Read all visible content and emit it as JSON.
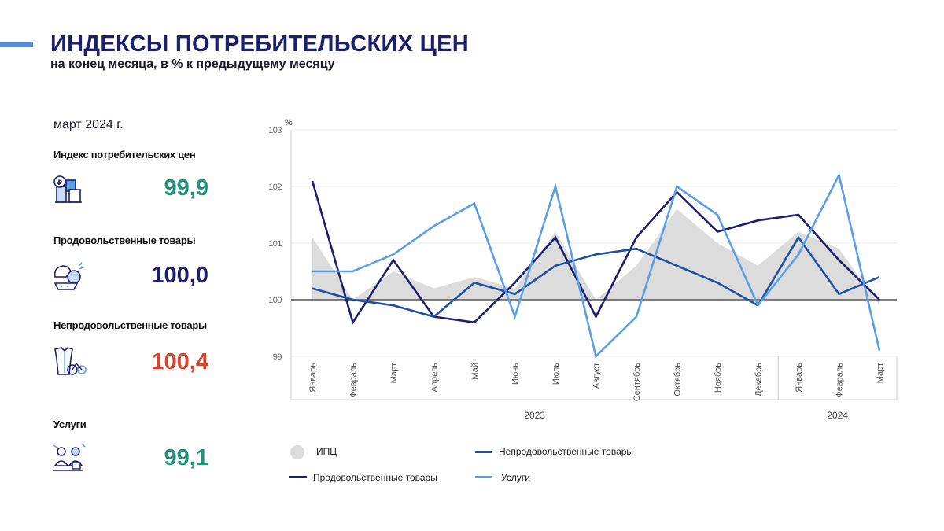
{
  "header": {
    "title": "ИНДЕКСЫ ПОТРЕБИТЕЛЬСКИХ ЦЕН",
    "subtitle": "на конец месяца, в % к предыдущему месяцу"
  },
  "period": "март 2024 г.",
  "metrics": [
    {
      "label": "Индекс потребительских цен",
      "value": "99,9",
      "color": "#22937a",
      "icon": "cpi-basket-icon"
    },
    {
      "label": "Продовольственные товары",
      "value": "100,0",
      "color": "#1c1e6e",
      "icon": "food-icon"
    },
    {
      "label": "Непродовольственные товары",
      "value": "100,4",
      "color": "#d9452b",
      "icon": "clothes-bicycle-icon"
    },
    {
      "label": "Услуги",
      "value": "99,1",
      "color": "#22937a",
      "icon": "services-icon"
    }
  ],
  "chart_data": {
    "type": "line",
    "ylabel": "%",
    "ylim": [
      99,
      103
    ],
    "yticks": [
      "99",
      "100",
      "101",
      "102",
      "103"
    ],
    "categories": [
      "Январь",
      "Февраль",
      "Март",
      "Апрель",
      "Май",
      "Июнь",
      "Июль",
      "Август",
      "Сентябрь",
      "Октябрь",
      "Ноябрь",
      "Декабрь",
      "Январь",
      "Февраль",
      "Март"
    ],
    "year_groups": [
      {
        "label": "2023",
        "start": 0,
        "end": 11
      },
      {
        "label": "2024",
        "start": 12,
        "end": 14
      }
    ],
    "baseline": 100,
    "series": [
      {
        "name": "ИПЦ",
        "kind": "area",
        "color": "#dcdcdc",
        "values": [
          101.1,
          100.0,
          100.5,
          100.2,
          100.4,
          100.2,
          101.2,
          100.0,
          100.6,
          101.6,
          101.0,
          100.6,
          101.2,
          100.9,
          99.9
        ]
      },
      {
        "name": "Продовольственные товары",
        "kind": "line",
        "color": "#1c1e6e",
        "values": [
          102.1,
          99.6,
          100.7,
          99.7,
          99.6,
          100.3,
          101.1,
          99.7,
          101.1,
          101.9,
          101.2,
          101.4,
          101.5,
          100.7,
          100.0
        ]
      },
      {
        "name": "Непродовольственные товары",
        "kind": "line",
        "color": "#1e4fa3",
        "values": [
          100.2,
          100.0,
          99.9,
          99.7,
          100.3,
          100.1,
          100.6,
          100.8,
          100.9,
          100.6,
          100.3,
          99.9,
          101.1,
          100.1,
          100.4
        ]
      },
      {
        "name": "Услуги",
        "kind": "line",
        "color": "#5b9ee8",
        "values": [
          100.5,
          100.5,
          100.8,
          101.3,
          101.7,
          99.7,
          102.0,
          99.0,
          99.7,
          102.0,
          101.5,
          99.9,
          100.8,
          102.2,
          99.1
        ]
      }
    ]
  }
}
